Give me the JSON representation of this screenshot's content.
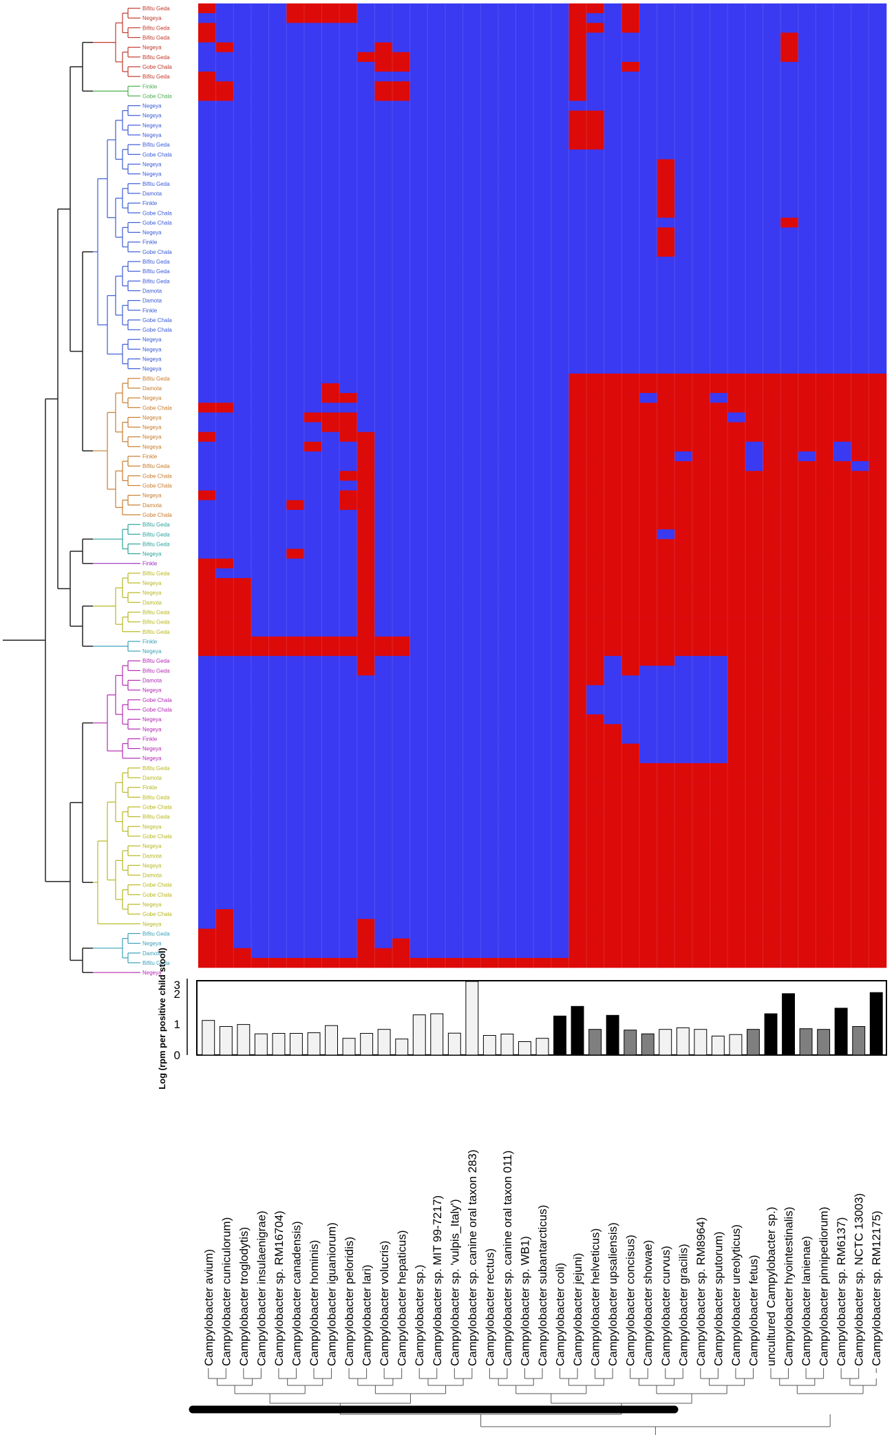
{
  "colors": {
    "present": "#dd0a0a",
    "absent": "#3a3af2",
    "bar_outline": "#000000",
    "bar_light": "#f2f2f2",
    "bar_mid": "#7f7f7f",
    "bar_dark": "#000000",
    "clusters": {
      "red": "#c0392b",
      "green": "#4caf50",
      "blue": "#3a5ad8",
      "orange": "#c87b2a",
      "teal": "#2aa39b",
      "purple": "#9b2ec0",
      "olive": "#b8b81e",
      "cyan": "#3aa0b8",
      "magenta": "#b42ab4"
    }
  },
  "samples": [
    {
      "label": "Bifitu Geda",
      "cluster": "red"
    },
    {
      "label": "Negeya",
      "cluster": "red"
    },
    {
      "label": "Bifitu Geda",
      "cluster": "red"
    },
    {
      "label": "Bifitu Geda",
      "cluster": "red"
    },
    {
      "label": "Negeya",
      "cluster": "red"
    },
    {
      "label": "Bifitu Geda",
      "cluster": "red"
    },
    {
      "label": "Gobe Chala",
      "cluster": "red"
    },
    {
      "label": "Bifitu Geda",
      "cluster": "red"
    },
    {
      "label": "Finkle",
      "cluster": "green"
    },
    {
      "label": "Gobe Chala",
      "cluster": "green"
    },
    {
      "label": "Negeya",
      "cluster": "blue"
    },
    {
      "label": "Negeya",
      "cluster": "blue"
    },
    {
      "label": "Negeya",
      "cluster": "blue"
    },
    {
      "label": "Negeya",
      "cluster": "blue"
    },
    {
      "label": "Bifitu Geda",
      "cluster": "blue"
    },
    {
      "label": "Gobe Chala",
      "cluster": "blue"
    },
    {
      "label": "Negeya",
      "cluster": "blue"
    },
    {
      "label": "Negeya",
      "cluster": "blue"
    },
    {
      "label": "Bifitu Geda",
      "cluster": "blue"
    },
    {
      "label": "Damota",
      "cluster": "blue"
    },
    {
      "label": "Finkle",
      "cluster": "blue"
    },
    {
      "label": "Gobe Chala",
      "cluster": "blue"
    },
    {
      "label": "Gobe Chala",
      "cluster": "blue"
    },
    {
      "label": "Negeya",
      "cluster": "blue"
    },
    {
      "label": "Finkle",
      "cluster": "blue"
    },
    {
      "label": "Gobe Chala",
      "cluster": "blue"
    },
    {
      "label": "Bifitu Geda",
      "cluster": "blue"
    },
    {
      "label": "Bifitu Geda",
      "cluster": "blue"
    },
    {
      "label": "Bifitu Geda",
      "cluster": "blue"
    },
    {
      "label": "Damota",
      "cluster": "blue"
    },
    {
      "label": "Damota",
      "cluster": "blue"
    },
    {
      "label": "Finkle",
      "cluster": "blue"
    },
    {
      "label": "Gobe Chala",
      "cluster": "blue"
    },
    {
      "label": "Gobe Chala",
      "cluster": "blue"
    },
    {
      "label": "Negeya",
      "cluster": "blue"
    },
    {
      "label": "Negeya",
      "cluster": "blue"
    },
    {
      "label": "Negeya",
      "cluster": "blue"
    },
    {
      "label": "Negeya",
      "cluster": "blue"
    },
    {
      "label": "Bifitu Geda",
      "cluster": "orange"
    },
    {
      "label": "Damota",
      "cluster": "orange"
    },
    {
      "label": "Negeya",
      "cluster": "orange"
    },
    {
      "label": "Gobe Chala",
      "cluster": "orange"
    },
    {
      "label": "Negeya",
      "cluster": "orange"
    },
    {
      "label": "Negeya",
      "cluster": "orange"
    },
    {
      "label": "Negeya",
      "cluster": "orange"
    },
    {
      "label": "Negeya",
      "cluster": "orange"
    },
    {
      "label": "Finkle",
      "cluster": "orange"
    },
    {
      "label": "Bifitu Geda",
      "cluster": "orange"
    },
    {
      "label": "Gobe Chala",
      "cluster": "orange"
    },
    {
      "label": "Gobe Chala",
      "cluster": "orange"
    },
    {
      "label": "Negeya",
      "cluster": "orange"
    },
    {
      "label": "Damota",
      "cluster": "orange"
    },
    {
      "label": "Gobe Chala",
      "cluster": "orange"
    },
    {
      "label": "Bifitu Geda",
      "cluster": "teal"
    },
    {
      "label": "Bifitu Geda",
      "cluster": "teal"
    },
    {
      "label": "Bifitu Geda",
      "cluster": "teal"
    },
    {
      "label": "Negeya",
      "cluster": "teal"
    },
    {
      "label": "Finkle",
      "cluster": "purple"
    },
    {
      "label": "Bifitu Geda",
      "cluster": "olive"
    },
    {
      "label": "Negeya",
      "cluster": "olive"
    },
    {
      "label": "Negeya",
      "cluster": "olive"
    },
    {
      "label": "Damota",
      "cluster": "olive"
    },
    {
      "label": "Bifitu Geda",
      "cluster": "olive"
    },
    {
      "label": "Bifitu Geda",
      "cluster": "olive"
    },
    {
      "label": "Bifitu Geda",
      "cluster": "olive"
    },
    {
      "label": "Finkle",
      "cluster": "cyan"
    },
    {
      "label": "Negeya",
      "cluster": "cyan"
    },
    {
      "label": "Bifitu Geda",
      "cluster": "magenta"
    },
    {
      "label": "Bifitu Geda",
      "cluster": "magenta"
    },
    {
      "label": "Damota",
      "cluster": "magenta"
    },
    {
      "label": "Negeya",
      "cluster": "magenta"
    },
    {
      "label": "Gobe Chala",
      "cluster": "magenta"
    },
    {
      "label": "Gobe Chala",
      "cluster": "magenta"
    },
    {
      "label": "Negeya",
      "cluster": "magenta"
    },
    {
      "label": "Negeya",
      "cluster": "magenta"
    },
    {
      "label": "Finkle",
      "cluster": "magenta"
    },
    {
      "label": "Negeya",
      "cluster": "magenta"
    },
    {
      "label": "Negeya",
      "cluster": "magenta"
    },
    {
      "label": "Bifitu Geda",
      "cluster": "olive"
    },
    {
      "label": "Damota",
      "cluster": "olive"
    },
    {
      "label": "Finkle",
      "cluster": "olive"
    },
    {
      "label": "Bifitu Geda",
      "cluster": "olive"
    },
    {
      "label": "Gobe Chala",
      "cluster": "olive"
    },
    {
      "label": "Bifitu Geda",
      "cluster": "olive"
    },
    {
      "label": "Negeya",
      "cluster": "olive"
    },
    {
      "label": "Gobe Chala",
      "cluster": "olive"
    },
    {
      "label": "Negeya",
      "cluster": "olive"
    },
    {
      "label": "Damota",
      "cluster": "olive"
    },
    {
      "label": "Negeya",
      "cluster": "olive"
    },
    {
      "label": "Damota",
      "cluster": "olive"
    },
    {
      "label": "Gobe Chala",
      "cluster": "olive"
    },
    {
      "label": "Gobe Chala",
      "cluster": "olive"
    },
    {
      "label": "Negeya",
      "cluster": "olive"
    },
    {
      "label": "Gobe Chala",
      "cluster": "olive"
    },
    {
      "label": "Negeya",
      "cluster": "olive"
    },
    {
      "label": "Bifitu Geda",
      "cluster": "cyan"
    },
    {
      "label": "Negeya",
      "cluster": "cyan"
    },
    {
      "label": "Damota",
      "cluster": "cyan"
    },
    {
      "label": "Bifitu Geda",
      "cluster": "cyan"
    },
    {
      "label": "Negeya",
      "cluster": "magenta"
    }
  ],
  "chart_data": [
    {
      "type": "heatmap",
      "title": "",
      "xlabel": "",
      "ylabel": "",
      "value_legend": {
        "1": "present",
        "0": "absent"
      },
      "columns": [
        "Campylobacter avium)",
        "Campylobacter cuniculorum)",
        "Campylobacter troglodytis)",
        "Campylobacter insulaenigrae)",
        "Campylobacter sp. RM16704)",
        "Campylobacter canadensis)",
        "Campylobacter hominis)",
        "Campylobacter iguaniorum)",
        "Campylobacter peloridis)",
        "Campylobacter lari)",
        "Campylobacter volucris)",
        "Campylobacter hepaticus)",
        "Campylobacter sp.)",
        "Campylobacter sp. MIT 99-7217)",
        "Campylobacter sp. 'vulpis_Italy')",
        "Campylobacter sp. canine oral taxon 283)",
        "Campylobacter rectus)",
        "Campylobacter sp. canine oral taxon 011)",
        "Campylobacter sp. WB1)",
        "Campylobacter subantarcticus)",
        "Campylobacter coli)",
        "Campylobacter jejuni)",
        "Campylobacter helveticus)",
        "Campylobacter upsaliensis)",
        "Campylobacter concisus)",
        "Campylobacter showae)",
        "Campylobacter curvus)",
        "Campylobacter gracilis)",
        "Campylobacter sp. RM8964)",
        "Campylobacter sputorum)",
        "Campylobacter ureolyticus)",
        "Campylobacter fetus)",
        "uncultured Campylobacter sp.)",
        "Campylobacter hyointestinalis)",
        "Campylobacter lanienae)",
        "Campylobacter pinnipediorum)",
        "Campylobacter sp. RM6137)",
        "Campylobacter sp. NCTC 13003)",
        "Campylobacter sp. RM12175)"
      ],
      "matrix": [
        "100001111000000000000110100000000000000",
        "000001111000000000000100100000000000000",
        "100000000000000000000110100000000000000",
        "100000000000000000000100000000000100000",
        "010000000010000000000100000000000100000",
        "000000000111000000000100000000000100000",
        "000000000011000000000100100000000000000",
        "100000000000000000000100000000000000000",
        "110000000011000000000100000000000000000",
        "110000000011000000000100000000000000000",
        "000000000000000000000000000000000000000",
        "000000000000000000000110000000000000000",
        "000000000000000000000110000000000000000",
        "000000000000000000000110000000000000000",
        "000000000000000000000110000000000000000",
        "000000000000000000000000000000000000000",
        "000000000000000000000000001000000000000",
        "000000000000000000000000001000000000000",
        "000000000000000000000000001000000000000",
        "000000000000000000000000001000000000000",
        "000000000000000000000000001000000000000",
        "000000000000000000000000001000000000000",
        "000000000000000000000000000000000100000",
        "000000000000000000000000001000000000000",
        "000000000000000000000000001000000000000",
        "000000000000000000000000001000000000000",
        "000000000000000000000000000000000000000",
        "000000000000000000000000000000000000000",
        "000000000000000000000000000000000000000",
        "000000000000000000000000000000000000000",
        "000000000000000000000000000000000000000",
        "000000000000000000000000000000000000000",
        "000000000000000000000000000000000000000",
        "000000000000000000000000000000000000000",
        "000000000000000000000000000000000000000",
        "000000000000000000000000000000000000000",
        "000000000000000000000000000000000000000",
        "000000000000000000000000000000000000000",
        "000000000000000000000111111111111111111",
        "000000010000000000000111111111111111111",
        "000000011000000000000111101110111111111",
        "110000000000000000000111111111111111111",
        "000000111000000000000111111111011111111",
        "000000011000000000000111111111111111111",
        "100000001100000000000111111111111111111",
        "000000100100000000000111111111101111011",
        "000000000100000000000111111011101101011",
        "000000000100000000000111111111101111101",
        "000000001100000000000111111111111111111",
        "000000000100000000000111111111111111111",
        "100000001100000000000111111111111111111",
        "000001001100000000000111111111111111111",
        "000000000100000000000111111111111111111",
        "000000000100000000000111111111111111111",
        "000000000100000000000111110111111111111",
        "000000000100000000000111111111111111111",
        "000001000100000000000111111111111111111",
        "110000000100000000000111111111111111111",
        "100000000100000000000111111111111111111",
        "111000000100000000000111111111111111111",
        "111000000100000000000111111111111111111",
        "111000000100000000000111111111111111111",
        "111000000100000000000111111111111111111",
        "111000000100000000000111111111111111111",
        "111000000100000000000111111111111111111",
        "111111111111000000000111111111111111111",
        "111111111111000000000111111111111111111",
        "000000000100000000000110111000111111111",
        "000000000100000000000110100000111111111",
        "000000000000000000000110000000111111111",
        "000000000000000000000100000000111111111",
        "000000000000000000000100000000111111111",
        "000000000000000000000100000000111111111",
        "000000000000000000000110000000111111111",
        "000000000000000000000111000000111111111",
        "000000000000000000000111000000111111111",
        "000000000000000000000111100000111111111",
        "000000000000000000000111100000111111111",
        "000000000000000000000111111111111111111",
        "000000000000000000000111111111111111111",
        "000000000000000000000111111111111111111",
        "000000000000000000000111111111111111111",
        "000000000000000000000111111111111111111",
        "000000000000000000000111111111111111111",
        "000000000000000000000111111111111111111",
        "000000000000000000000111111111111111111",
        "000000000000000000000111111111111111111",
        "000000000000000000000111111111111111111",
        "000000000000000000000111111111111111111",
        "000000000000000000000111111111111111111",
        "000000000000000000000111111111111111111",
        "000000000000000000000111111111111111111",
        "000000000000000000000111111111111111111",
        "010000000000000000000111111111111111111",
        "010000000100000000000111111111111111111",
        "110000000100000000000111111111111111111",
        "110000000101000000000111111111111111111",
        "111000000111000000000111111111111111111",
        "111111111111111111111111111111111111111"
      ]
    },
    {
      "type": "bar",
      "title": "",
      "xlabel": "",
      "ylabel": "Log (rpm per positive child stool)",
      "ylim": [
        0,
        3.3
      ],
      "yticks": [
        "0",
        "1",
        "2",
        "3"
      ],
      "categories": [
        "Campylobacter avium)",
        "Campylobacter cuniculorum)",
        "Campylobacter troglodytis)",
        "Campylobacter insulaenigrae)",
        "Campylobacter sp. RM16704)",
        "Campylobacter canadensis)",
        "Campylobacter hominis)",
        "Campylobacter iguaniorum)",
        "Campylobacter peloridis)",
        "Campylobacter lari)",
        "Campylobacter volucris)",
        "Campylobacter hepaticus)",
        "Campylobacter sp.)",
        "Campylobacter sp. MIT 99-7217)",
        "Campylobacter sp. 'vulpis_Italy')",
        "Campylobacter sp. canine oral taxon 283)",
        "Campylobacter rectus)",
        "Campylobacter sp. canine oral taxon 011)",
        "Campylobacter sp. WB1)",
        "Campylobacter subantarcticus)",
        "Campylobacter coli)",
        "Campylobacter jejuni)",
        "Campylobacter helveticus)",
        "Campylobacter upsaliensis)",
        "Campylobacter concisus)",
        "Campylobacter showae)",
        "Campylobacter curvus)",
        "Campylobacter gracilis)",
        "Campylobacter sp. RM8964)",
        "Campylobacter sputorum)",
        "Campylobacter ureolyticus)",
        "Campylobacter fetus)",
        "uncultured Campylobacter sp.)",
        "Campylobacter hyointestinalis)",
        "Campylobacter lanienae)",
        "Campylobacter pinnipediorum)",
        "Campylobacter sp. RM6137)",
        "Campylobacter sp. NCTC 13003)",
        "Campylobacter sp. RM12175)"
      ],
      "values": [
        1.55,
        1.28,
        1.37,
        0.95,
        0.97,
        0.97,
        1.0,
        1.32,
        0.75,
        0.97,
        1.15,
        0.72,
        1.8,
        1.85,
        0.98,
        3.3,
        0.88,
        0.94,
        0.6,
        0.75,
        1.75,
        2.18,
        1.15,
        1.78,
        1.12,
        0.95,
        1.15,
        1.22,
        1.15,
        0.85,
        0.92,
        1.15,
        1.85,
        2.75,
        1.18,
        1.15,
        2.1,
        1.28,
        2.8
      ],
      "shade": [
        "light",
        "light",
        "light",
        "light",
        "light",
        "light",
        "light",
        "light",
        "light",
        "light",
        "light",
        "light",
        "light",
        "light",
        "light",
        "light",
        "light",
        "light",
        "light",
        "light",
        "dark",
        "dark",
        "mid",
        "dark",
        "mid",
        "mid",
        "light",
        "light",
        "light",
        "light",
        "light",
        "mid",
        "dark",
        "dark",
        "mid",
        "mid",
        "dark",
        "mid",
        "dark"
      ]
    }
  ]
}
